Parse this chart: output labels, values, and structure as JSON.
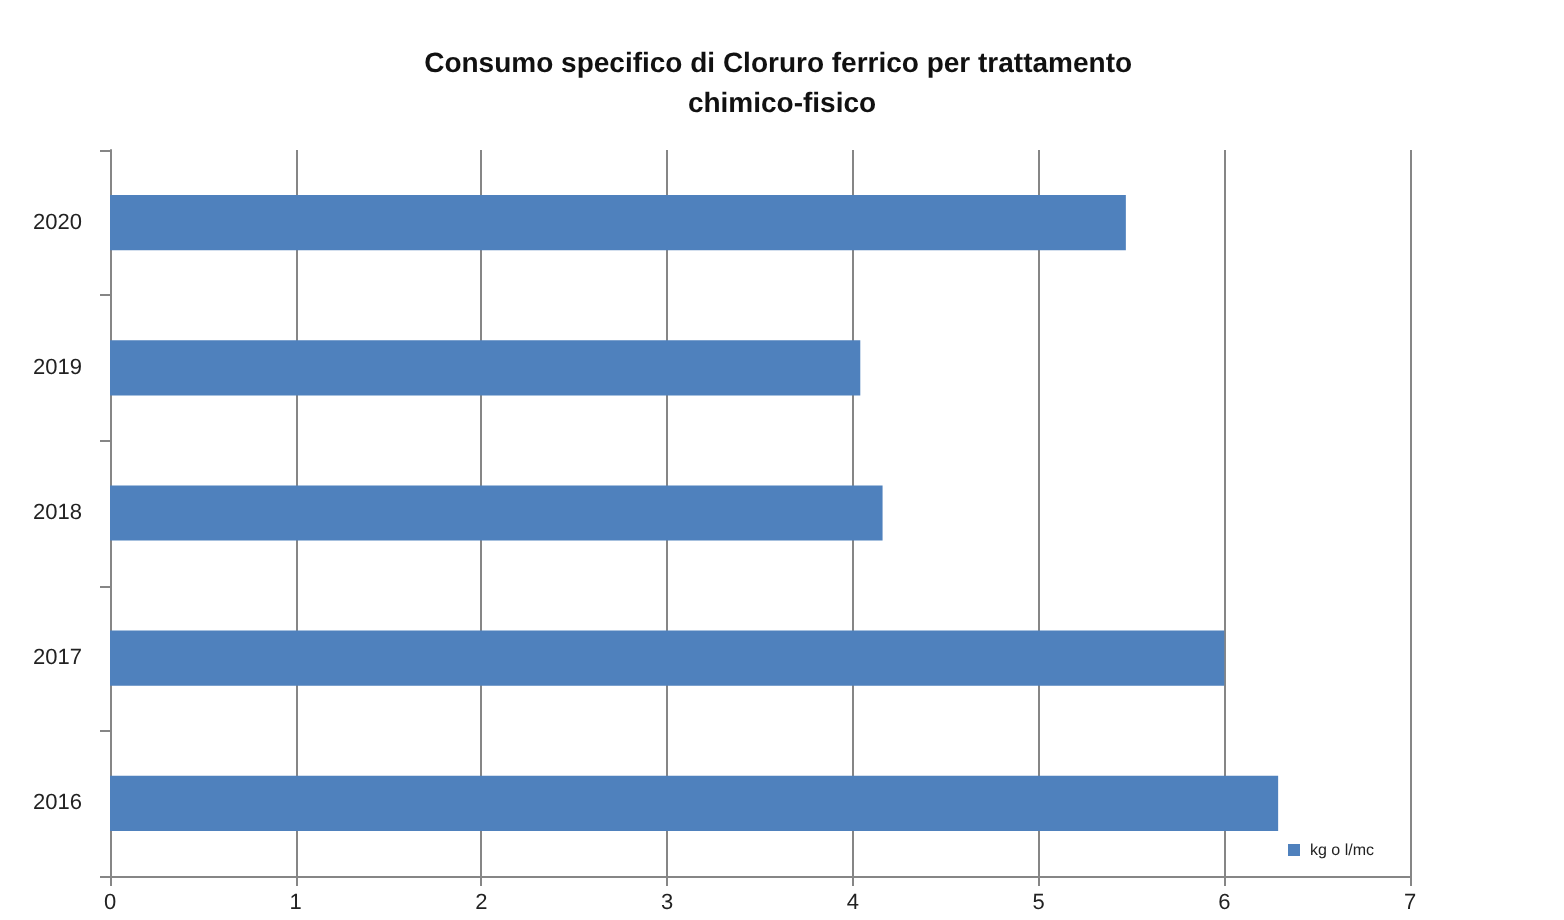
{
  "chart_data": {
    "type": "bar",
    "orientation": "horizontal",
    "title": "Consumo specifico di Cloruro ferrico per trattamento chimico-fisico",
    "categories": [
      "2020",
      "2019",
      "2018",
      "2017",
      "2016"
    ],
    "series": [
      {
        "name": "kg o l/mc",
        "color": "#4f81bd",
        "values": [
          5.47,
          4.04,
          4.16,
          6.0,
          6.29
        ]
      }
    ],
    "xlim": [
      0,
      7
    ],
    "xticks": [
      0,
      1,
      2,
      3,
      4,
      5,
      6,
      7
    ],
    "grid": "x",
    "legend": "bottom right"
  }
}
